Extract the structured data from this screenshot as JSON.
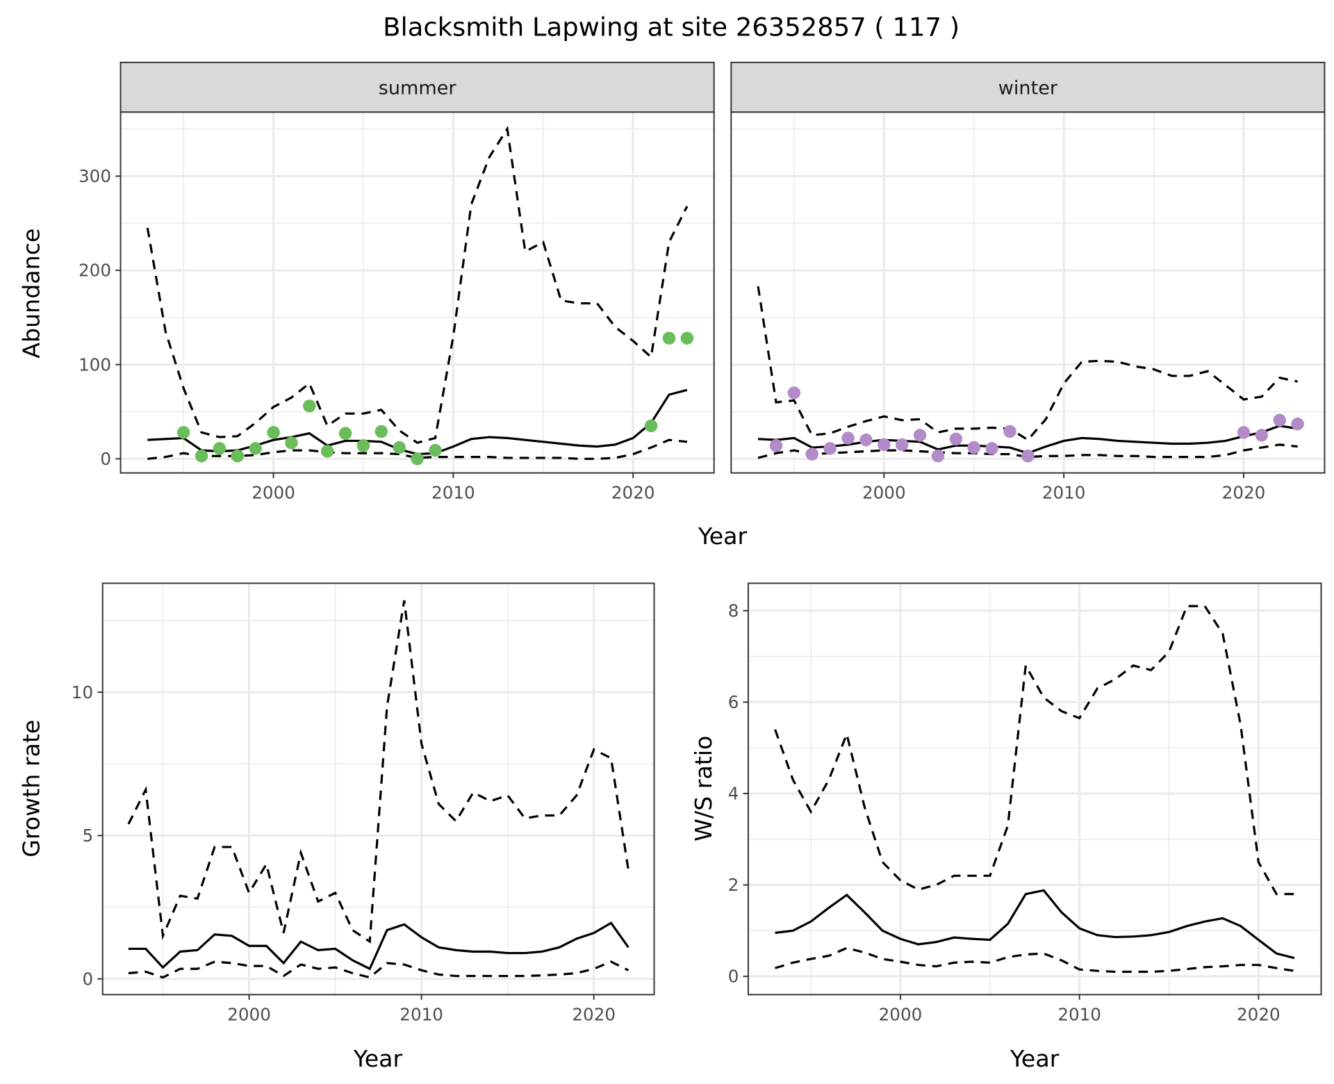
{
  "title": "Blacksmith Lapwing at site 26352857 ( 117 )",
  "colors": {
    "summer": "#6abd5a",
    "winter": "#b38bc9",
    "line": "#000000",
    "grid": "#ebebeb"
  },
  "chart_data": [
    {
      "type": "line",
      "panel": "summer",
      "strip": "summer",
      "xlabel": "Year",
      "ylabel": "Abundance",
      "xticks": [
        2000,
        2010,
        2020
      ],
      "yticks": [
        0,
        100,
        200,
        300
      ],
      "xlim": [
        1991.5,
        2024.5
      ],
      "ylim": [
        -15,
        368
      ],
      "x": [
        1993,
        1994,
        1995,
        1996,
        1997,
        1998,
        1999,
        2000,
        2001,
        2002,
        2003,
        2004,
        2005,
        2006,
        2007,
        2008,
        2009,
        2010,
        2011,
        2012,
        2013,
        2014,
        2015,
        2016,
        2017,
        2018,
        2019,
        2020,
        2021,
        2022,
        2023
      ],
      "series": [
        {
          "name": "estimate",
          "style": "solid",
          "values": [
            20,
            21,
            22,
            9,
            8,
            9,
            14,
            20,
            23,
            27,
            14,
            19,
            19,
            18,
            10,
            5,
            6,
            13,
            21,
            23,
            22,
            20,
            18,
            16,
            14,
            13,
            15,
            22,
            38,
            68,
            73
          ]
        },
        {
          "name": "upper",
          "style": "dashed",
          "values": [
            245,
            135,
            75,
            28,
            23,
            24,
            38,
            55,
            65,
            80,
            35,
            48,
            48,
            52,
            30,
            17,
            22,
            130,
            270,
            320,
            350,
            220,
            230,
            168,
            165,
            165,
            140,
            125,
            108,
            230,
            268
          ]
        },
        {
          "name": "lower",
          "style": "dashed",
          "values": [
            0,
            2,
            6,
            3,
            3,
            3,
            4,
            7,
            9,
            9,
            7,
            6,
            6,
            6,
            5,
            1,
            2,
            2,
            2,
            2,
            1,
            1,
            1,
            1,
            0,
            0,
            1,
            5,
            12,
            20,
            18
          ]
        }
      ],
      "points": {
        "x": [
          1995,
          1996,
          1997,
          1998,
          1999,
          2000,
          2001,
          2002,
          2003,
          2004,
          2005,
          2006,
          2007,
          2008,
          2009,
          2021,
          2022,
          2023
        ],
        "y": [
          28,
          3,
          11,
          3,
          11,
          28,
          17,
          56,
          8,
          27,
          14,
          29,
          12,
          0,
          9,
          35,
          128,
          128
        ]
      }
    },
    {
      "type": "line",
      "panel": "winter",
      "strip": "winter",
      "xlabel": "Year",
      "ylabel": "",
      "xticks": [
        2000,
        2010,
        2020
      ],
      "yticks": [
        0,
        100,
        200,
        300
      ],
      "xlim": [
        1991.5,
        2024.5
      ],
      "ylim": [
        -15,
        368
      ],
      "x": [
        1993,
        1994,
        1995,
        1996,
        1997,
        1998,
        1999,
        2000,
        2001,
        2002,
        2003,
        2004,
        2005,
        2006,
        2007,
        2008,
        2009,
        2010,
        2011,
        2012,
        2013,
        2014,
        2015,
        2016,
        2017,
        2018,
        2019,
        2020,
        2021,
        2022,
        2023
      ],
      "series": [
        {
          "name": "estimate",
          "style": "solid",
          "values": [
            21,
            20,
            22,
            12,
            13,
            15,
            18,
            20,
            19,
            18,
            10,
            14,
            14,
            13,
            12,
            6,
            13,
            19,
            22,
            21,
            19,
            18,
            17,
            16,
            16,
            17,
            19,
            24,
            28,
            35,
            32
          ]
        },
        {
          "name": "upper",
          "style": "dashed",
          "values": [
            183,
            60,
            62,
            25,
            27,
            34,
            40,
            45,
            41,
            42,
            28,
            32,
            32,
            33,
            32,
            20,
            42,
            80,
            103,
            104,
            103,
            98,
            95,
            88,
            88,
            93,
            78,
            63,
            66,
            86,
            82
          ]
        },
        {
          "name": "lower",
          "style": "dashed",
          "values": [
            1,
            6,
            9,
            5,
            6,
            7,
            8,
            9,
            9,
            8,
            7,
            6,
            6,
            5,
            5,
            2,
            3,
            3,
            4,
            4,
            3,
            3,
            2,
            2,
            2,
            2,
            4,
            9,
            12,
            15,
            13
          ]
        }
      ],
      "points": {
        "x": [
          1994,
          1995,
          1996,
          1997,
          1998,
          1999,
          2000,
          2001,
          2002,
          2003,
          2004,
          2005,
          2006,
          2007,
          2008,
          2020,
          2021,
          2022,
          2023
        ],
        "y": [
          14,
          70,
          5,
          11,
          22,
          20,
          15,
          15,
          25,
          3,
          21,
          12,
          11,
          29,
          3,
          28,
          25,
          41,
          37
        ]
      }
    },
    {
      "type": "line",
      "panel": "growth",
      "xlabel": "Year",
      "ylabel": "Growth rate",
      "xticks": [
        2000,
        2010,
        2020
      ],
      "yticks": [
        0,
        5,
        10
      ],
      "xlim": [
        1991.5,
        2023.5
      ],
      "ylim": [
        -0.55,
        13.8
      ],
      "x": [
        1993,
        1994,
        1995,
        1996,
        1997,
        1998,
        1999,
        2000,
        2001,
        2002,
        2003,
        2004,
        2005,
        2006,
        2007,
        2008,
        2009,
        2010,
        2011,
        2012,
        2013,
        2014,
        2015,
        2016,
        2017,
        2018,
        2019,
        2020,
        2021,
        2022
      ],
      "series": [
        {
          "name": "estimate",
          "style": "solid",
          "values": [
            1.05,
            1.05,
            0.4,
            0.95,
            1.0,
            1.55,
            1.5,
            1.15,
            1.15,
            0.55,
            1.3,
            1.0,
            1.05,
            0.65,
            0.35,
            1.7,
            1.9,
            1.45,
            1.1,
            1.0,
            0.95,
            0.95,
            0.9,
            0.9,
            0.95,
            1.1,
            1.4,
            1.6,
            1.95,
            1.1
          ]
        },
        {
          "name": "upper",
          "style": "dashed",
          "values": [
            5.4,
            6.6,
            1.5,
            2.9,
            2.8,
            4.6,
            4.6,
            3.0,
            4.0,
            1.6,
            4.4,
            2.7,
            3.0,
            1.7,
            1.3,
            9.5,
            13.2,
            8.2,
            6.1,
            5.5,
            6.5,
            6.2,
            6.4,
            5.6,
            5.7,
            5.7,
            6.4,
            8.0,
            7.7,
            3.8
          ]
        },
        {
          "name": "lower",
          "style": "dashed",
          "values": [
            0.2,
            0.25,
            0.05,
            0.35,
            0.35,
            0.6,
            0.55,
            0.45,
            0.45,
            0.1,
            0.5,
            0.35,
            0.4,
            0.2,
            0.05,
            0.55,
            0.5,
            0.3,
            0.15,
            0.1,
            0.1,
            0.1,
            0.1,
            0.1,
            0.12,
            0.15,
            0.2,
            0.35,
            0.6,
            0.3
          ]
        }
      ]
    },
    {
      "type": "line",
      "panel": "ratio",
      "xlabel": "Year",
      "ylabel": "W/S ratio",
      "xticks": [
        2000,
        2010,
        2020
      ],
      "yticks": [
        0,
        2,
        4,
        6,
        8
      ],
      "xlim": [
        1991.5,
        2023.5
      ],
      "ylim": [
        -0.4,
        8.6
      ],
      "x": [
        1993,
        1994,
        1995,
        1996,
        1997,
        1998,
        1999,
        2000,
        2001,
        2002,
        2003,
        2004,
        2005,
        2006,
        2007,
        2008,
        2009,
        2010,
        2011,
        2012,
        2013,
        2014,
        2015,
        2016,
        2017,
        2018,
        2019,
        2020,
        2021,
        2022
      ],
      "series": [
        {
          "name": "estimate",
          "style": "solid",
          "values": [
            0.95,
            1.0,
            1.2,
            1.5,
            1.78,
            1.4,
            1.0,
            0.82,
            0.7,
            0.75,
            0.85,
            0.82,
            0.8,
            1.15,
            1.8,
            1.88,
            1.4,
            1.05,
            0.9,
            0.86,
            0.87,
            0.9,
            0.97,
            1.1,
            1.2,
            1.27,
            1.1,
            0.8,
            0.5,
            0.4
          ]
        },
        {
          "name": "upper",
          "style": "dashed",
          "values": [
            5.4,
            4.3,
            3.6,
            4.3,
            5.3,
            3.7,
            2.5,
            2.1,
            1.9,
            2.0,
            2.2,
            2.2,
            2.2,
            3.3,
            6.8,
            6.1,
            5.8,
            5.65,
            6.3,
            6.5,
            6.8,
            6.7,
            7.1,
            8.1,
            8.1,
            7.5,
            5.5,
            2.5,
            1.8,
            1.8
          ]
        },
        {
          "name": "lower",
          "style": "dashed",
          "values": [
            0.18,
            0.3,
            0.38,
            0.45,
            0.62,
            0.52,
            0.38,
            0.32,
            0.25,
            0.22,
            0.3,
            0.32,
            0.3,
            0.42,
            0.48,
            0.5,
            0.35,
            0.15,
            0.12,
            0.1,
            0.1,
            0.1,
            0.12,
            0.16,
            0.2,
            0.22,
            0.25,
            0.25,
            0.18,
            0.12
          ]
        }
      ]
    }
  ],
  "shared_xlabel_top": "Year"
}
